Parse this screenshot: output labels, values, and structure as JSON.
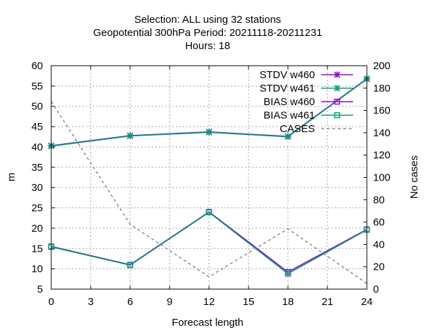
{
  "chart_data": {
    "type": "line",
    "title_lines": [
      "Selection: ALL using     32 stations",
      "Geopotential 300hPa   Period: 20211118-20211231",
      "Hours:  18"
    ],
    "xlabel": "Forecast length",
    "ylabel": "m",
    "y2label": "No cases",
    "xlim": [
      0,
      24
    ],
    "ylim": [
      5,
      60
    ],
    "y2lim": [
      0,
      200
    ],
    "xticks": [
      0,
      3,
      6,
      9,
      12,
      15,
      18,
      21,
      24
    ],
    "yticks": [
      5,
      10,
      15,
      20,
      25,
      30,
      35,
      40,
      45,
      50,
      55,
      60
    ],
    "y2ticks": [
      0,
      20,
      40,
      60,
      80,
      100,
      120,
      140,
      160,
      180,
      200
    ],
    "grid": true,
    "legend_position": "top-right",
    "series": [
      {
        "name": "STDV w460",
        "axis": "y",
        "x": [
          0,
          6,
          12,
          18,
          24
        ],
        "values": [
          40.3,
          42.8,
          43.7,
          42.6,
          56.8
        ],
        "color": "#9400d3",
        "marker": "star",
        "dash": false
      },
      {
        "name": "STDV w461",
        "axis": "y",
        "x": [
          0,
          6,
          12,
          18,
          24
        ],
        "values": [
          40.2,
          42.7,
          43.6,
          42.5,
          56.7
        ],
        "color": "#009e73",
        "marker": "star",
        "dash": false
      },
      {
        "name": "BIAS w460",
        "axis": "y",
        "x": [
          0,
          6,
          12,
          18,
          24
        ],
        "values": [
          15.5,
          11.0,
          24.0,
          9.2,
          19.7
        ],
        "color": "#9400d3",
        "marker": "square",
        "dash": false
      },
      {
        "name": "BIAS w461",
        "axis": "y",
        "x": [
          0,
          6,
          12,
          18,
          24
        ],
        "values": [
          15.4,
          10.9,
          23.9,
          8.8,
          19.6
        ],
        "color": "#009e73",
        "marker": "square",
        "dash": false
      },
      {
        "name": "CASES",
        "axis": "y2",
        "x": [
          0,
          6,
          12,
          18,
          24
        ],
        "values": [
          168,
          58,
          11,
          54,
          5
        ],
        "color": "#888888",
        "marker": "none",
        "dash": true
      }
    ]
  }
}
